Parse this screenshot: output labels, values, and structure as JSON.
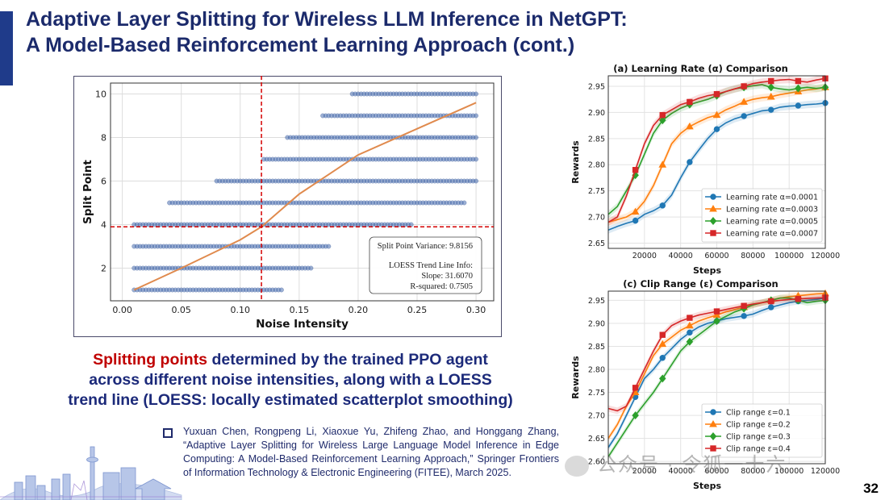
{
  "slide": {
    "title_line1": "Adaptive Layer Splitting for Wireless LLM Inference in NetGPT:",
    "title_line2": "A Model-Based Reinforcement Learning Approach (cont.)",
    "page_number": "32",
    "colors": {
      "title": "#1b2a6b",
      "accent": "#1f3b8a",
      "highlight": "#c00000"
    }
  },
  "caption": {
    "highlight": "Splitting points",
    "rest_line1": " determined by the trained PPO agent",
    "line2": "across different noise intensities, along with a LOESS",
    "line3": "trend line (LOESS: locally estimated scatterplot smoothing)"
  },
  "reference": {
    "text": "Yuxuan Chen, Rongpeng Li, Xiaoxue Yu, Zhifeng Zhao, and Honggang Zhang, “Adaptive Layer Splitting for Wireless Large Language Model Inference in Edge Computing: A Model-Based Reinforcement Learning Approach,” Springer Frontiers of Information Technology & Electronic Engineering (FITEE), March 2025."
  },
  "watermark": {
    "text": "公众号 · 令狐一十六"
  },
  "chart_data": [
    {
      "type": "scatter",
      "title": "",
      "xlabel": "Noise Intensity",
      "ylabel": "Split Point",
      "xlim": [
        -0.01,
        0.315
      ],
      "ylim": [
        0.5,
        10.5
      ],
      "xticks": [
        0.0,
        0.05,
        0.1,
        0.15,
        0.2,
        0.25,
        0.3
      ],
      "xtick_labels": [
        "0.00",
        "0.05",
        "0.10",
        "0.15",
        "0.20",
        "0.25",
        "0.30"
      ],
      "yticks": [
        2,
        4,
        6,
        8,
        10
      ],
      "ytick_labels": [
        "2",
        "4",
        "6",
        "8",
        "10"
      ],
      "grid": true,
      "point_color": "#4a6fb0",
      "trend_color": "#e08a4d",
      "ref_line_color": "#d40000",
      "ref_vline_x": 0.118,
      "ref_hline_y": 3.9,
      "point_ranges": [
        {
          "y": 1,
          "x_min": 0.01,
          "x_max": 0.135
        },
        {
          "y": 2,
          "x_min": 0.01,
          "x_max": 0.16
        },
        {
          "y": 3,
          "x_min": 0.01,
          "x_max": 0.175
        },
        {
          "y": 4,
          "x_min": 0.01,
          "x_max": 0.245
        },
        {
          "y": 5,
          "x_min": 0.04,
          "x_max": 0.29
        },
        {
          "y": 6,
          "x_min": 0.08,
          "x_max": 0.3
        },
        {
          "y": 7,
          "x_min": 0.12,
          "x_max": 0.3
        },
        {
          "y": 8,
          "x_min": 0.14,
          "x_max": 0.3
        },
        {
          "y": 9,
          "x_min": 0.17,
          "x_max": 0.3
        },
        {
          "y": 10,
          "x_min": 0.195,
          "x_max": 0.3
        }
      ],
      "trend_x": [
        0.01,
        0.05,
        0.1,
        0.118,
        0.15,
        0.2,
        0.25,
        0.3
      ],
      "trend_y": [
        1.0,
        2.0,
        3.3,
        3.9,
        5.4,
        7.2,
        8.4,
        9.6
      ],
      "legend_lines": [
        "Split Point Variance: 9.8156",
        "LOESS Trend Line Info:",
        "Slope: 31.6070",
        "R-squared: 0.7505"
      ]
    },
    {
      "type": "line",
      "title": "(a)  Learning Rate (α) Comparison",
      "xlabel": "Steps",
      "ylabel": "Rewards",
      "xlim": [
        0,
        120000
      ],
      "ylim": [
        2.64,
        2.97
      ],
      "xticks": [
        20000,
        40000,
        60000,
        80000,
        100000,
        120000
      ],
      "xtick_labels": [
        "20000",
        "40000",
        "60000",
        "80000",
        "100000",
        "120000"
      ],
      "yticks": [
        2.65,
        2.7,
        2.75,
        2.8,
        2.85,
        2.9,
        2.95
      ],
      "ytick_labels": [
        "2.65",
        "2.70",
        "2.75",
        "2.80",
        "2.85",
        "2.90",
        "2.95"
      ],
      "legend_position": "lower-right",
      "x": [
        0,
        5000,
        10000,
        15000,
        20000,
        25000,
        30000,
        35000,
        40000,
        45000,
        50000,
        55000,
        60000,
        65000,
        70000,
        75000,
        80000,
        85000,
        90000,
        95000,
        100000,
        105000,
        110000,
        115000,
        120000
      ],
      "series": [
        {
          "name": "Learning rate α=0.0001",
          "color": "#1f77b4",
          "marker": "circle",
          "values": [
            2.675,
            2.682,
            2.688,
            2.693,
            2.705,
            2.712,
            2.722,
            2.742,
            2.775,
            2.805,
            2.828,
            2.85,
            2.868,
            2.88,
            2.888,
            2.893,
            2.898,
            2.903,
            2.905,
            2.91,
            2.912,
            2.913,
            2.915,
            2.916,
            2.918
          ]
        },
        {
          "name": "Learning rate α=0.0003",
          "color": "#ff7f0e",
          "marker": "triangle",
          "values": [
            2.69,
            2.695,
            2.7,
            2.71,
            2.73,
            2.76,
            2.8,
            2.84,
            2.86,
            2.873,
            2.882,
            2.89,
            2.895,
            2.905,
            2.912,
            2.92,
            2.925,
            2.928,
            2.93,
            2.934,
            2.937,
            2.94,
            2.943,
            2.945,
            2.948
          ]
        },
        {
          "name": "Learning rate α=0.0005",
          "color": "#2ca02c",
          "marker": "diamond",
          "values": [
            2.705,
            2.72,
            2.75,
            2.78,
            2.82,
            2.86,
            2.885,
            2.898,
            2.908,
            2.915,
            2.92,
            2.925,
            2.932,
            2.94,
            2.945,
            2.948,
            2.951,
            2.953,
            2.948,
            2.945,
            2.943,
            2.946,
            2.948,
            2.946,
            2.948
          ]
        },
        {
          "name": "Learning rate α=0.0007",
          "color": "#d62728",
          "marker": "square",
          "values": [
            2.69,
            2.7,
            2.74,
            2.79,
            2.84,
            2.875,
            2.895,
            2.905,
            2.915,
            2.92,
            2.927,
            2.932,
            2.935,
            2.94,
            2.945,
            2.95,
            2.955,
            2.958,
            2.96,
            2.962,
            2.963,
            2.96,
            2.958,
            2.962,
            2.965
          ]
        }
      ]
    },
    {
      "type": "line",
      "title": "(c)  Clip Range (ε) Comparison",
      "xlabel": "Steps",
      "ylabel": "Rewards",
      "xlim": [
        0,
        120000
      ],
      "ylim": [
        2.595,
        2.97
      ],
      "xticks": [
        20000,
        40000,
        60000,
        80000,
        100000,
        120000
      ],
      "xtick_labels": [
        "20000",
        "40000",
        "60000",
        "80000",
        "100000",
        "120000"
      ],
      "yticks": [
        2.6,
        2.65,
        2.7,
        2.75,
        2.8,
        2.85,
        2.9,
        2.95
      ],
      "ytick_labels": [
        "2.60",
        "2.65",
        "2.70",
        "2.75",
        "2.80",
        "2.85",
        "2.90",
        "2.95"
      ],
      "legend_position": "lower-right",
      "x": [
        0,
        5000,
        10000,
        15000,
        20000,
        25000,
        30000,
        35000,
        40000,
        45000,
        50000,
        55000,
        60000,
        65000,
        70000,
        75000,
        80000,
        85000,
        90000,
        95000,
        100000,
        105000,
        110000,
        115000,
        120000
      ],
      "series": [
        {
          "name": "Clip range ε=0.1",
          "color": "#1f77b4",
          "marker": "circle",
          "values": [
            2.63,
            2.66,
            2.7,
            2.74,
            2.78,
            2.8,
            2.825,
            2.845,
            2.865,
            2.88,
            2.892,
            2.9,
            2.905,
            2.91,
            2.913,
            2.916,
            2.92,
            2.928,
            2.935,
            2.94,
            2.945,
            2.948,
            2.95,
            2.952,
            2.955
          ]
        },
        {
          "name": "Clip range ε=0.2",
          "color": "#ff7f0e",
          "marker": "triangle",
          "values": [
            2.65,
            2.68,
            2.72,
            2.75,
            2.79,
            2.83,
            2.855,
            2.87,
            2.885,
            2.895,
            2.905,
            2.912,
            2.918,
            2.925,
            2.93,
            2.935,
            2.94,
            2.945,
            2.95,
            2.955,
            2.958,
            2.96,
            2.962,
            2.964,
            2.965
          ]
        },
        {
          "name": "Clip range ε=0.3",
          "color": "#2ca02c",
          "marker": "diamond",
          "values": [
            2.61,
            2.64,
            2.67,
            2.7,
            2.725,
            2.75,
            2.78,
            2.81,
            2.84,
            2.86,
            2.875,
            2.89,
            2.905,
            2.915,
            2.925,
            2.932,
            2.94,
            2.945,
            2.95,
            2.955,
            2.955,
            2.95,
            2.945,
            2.948,
            2.95
          ]
        },
        {
          "name": "Clip range ε=0.4",
          "color": "#d62728",
          "marker": "square",
          "values": [
            2.715,
            2.71,
            2.72,
            2.76,
            2.8,
            2.84,
            2.875,
            2.895,
            2.905,
            2.912,
            2.918,
            2.922,
            2.926,
            2.93,
            2.934,
            2.938,
            2.942,
            2.945,
            2.948,
            2.95,
            2.952,
            2.953,
            2.954,
            2.955,
            2.956
          ]
        }
      ]
    }
  ]
}
